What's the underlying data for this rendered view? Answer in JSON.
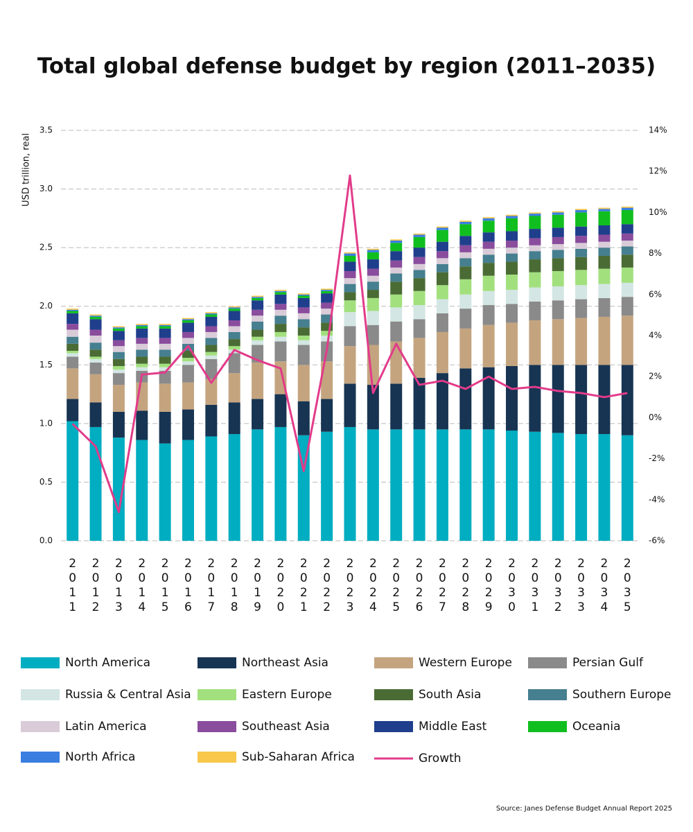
{
  "chart_data": {
    "type": "stacked-bar",
    "title": "Total global defense budget by region (2011–2035)",
    "y_label": "USD trillion, real",
    "source": "Source: Janes Defense Budget Annual Report 2025",
    "categories": [
      "2011",
      "2012",
      "2013",
      "2014",
      "2015",
      "2016",
      "2017",
      "2018",
      "2019",
      "2020",
      "2021",
      "2022",
      "2023",
      "2024",
      "2025",
      "2026",
      "2027",
      "2028",
      "2029",
      "2030",
      "2031",
      "2032",
      "2033",
      "2034",
      "2035"
    ],
    "ylim": [
      0,
      3.5
    ],
    "yticks": [
      {
        "value": 0,
        "label": "0.0"
      },
      0.5,
      {
        "value": 1,
        "label": "1.0"
      },
      1.5,
      {
        "value": 2,
        "label": "2.0"
      },
      2.5,
      {
        "value": 3,
        "label": "3.0"
      },
      3.5
    ],
    "y2lim": [
      -6,
      14
    ],
    "y2ticks": [
      {
        "value": -6,
        "label": "-6%"
      },
      {
        "value": -4,
        "label": "-4%"
      },
      {
        "value": -2,
        "label": "-2%"
      },
      {
        "value": 0,
        "label": "0%"
      },
      {
        "value": 2,
        "label": "2%"
      },
      {
        "value": 4,
        "label": "4%"
      },
      {
        "value": 6,
        "label": "6%"
      },
      {
        "value": 8,
        "label": "8%"
      },
      {
        "value": 10,
        "label": "10%"
      },
      {
        "value": 12,
        "label": "12%"
      },
      {
        "value": 14,
        "label": "14%"
      }
    ],
    "grid": true,
    "series": [
      {
        "name": "North America",
        "color": "#00adc1",
        "values": [
          1.02,
          0.97,
          0.88,
          0.86,
          0.83,
          0.86,
          0.89,
          0.91,
          0.95,
          0.97,
          0.9,
          0.93,
          0.97,
          0.95,
          0.95,
          0.95,
          0.95,
          0.95,
          0.95,
          0.94,
          0.93,
          0.92,
          0.91,
          0.91,
          0.9
        ]
      },
      {
        "name": "Northeast Asia",
        "color": "#173452",
        "values": [
          0.19,
          0.21,
          0.22,
          0.25,
          0.27,
          0.26,
          0.27,
          0.27,
          0.26,
          0.28,
          0.29,
          0.28,
          0.37,
          0.38,
          0.39,
          0.44,
          0.48,
          0.52,
          0.53,
          0.55,
          0.57,
          0.58,
          0.59,
          0.59,
          0.6
        ]
      },
      {
        "name": "Western Europe",
        "color": "#c4a47f",
        "values": [
          0.26,
          0.24,
          0.23,
          0.24,
          0.24,
          0.23,
          0.22,
          0.25,
          0.31,
          0.28,
          0.31,
          0.32,
          0.32,
          0.34,
          0.36,
          0.34,
          0.35,
          0.34,
          0.36,
          0.37,
          0.38,
          0.39,
          0.4,
          0.41,
          0.42
        ]
      },
      {
        "name": "Persian Gulf",
        "color": "#8a8a8a",
        "values": [
          0.1,
          0.1,
          0.1,
          0.1,
          0.11,
          0.15,
          0.17,
          0.17,
          0.15,
          0.17,
          0.17,
          0.17,
          0.17,
          0.17,
          0.17,
          0.16,
          0.16,
          0.17,
          0.17,
          0.16,
          0.16,
          0.16,
          0.16,
          0.16,
          0.16
        ]
      },
      {
        "name": "Russia & Central Asia",
        "color": "#d3e6e3",
        "values": [
          0.03,
          0.03,
          0.03,
          0.03,
          0.03,
          0.03,
          0.03,
          0.03,
          0.04,
          0.04,
          0.04,
          0.05,
          0.12,
          0.12,
          0.12,
          0.12,
          0.12,
          0.12,
          0.12,
          0.12,
          0.12,
          0.12,
          0.12,
          0.12,
          0.12
        ]
      },
      {
        "name": "Eastern Europe",
        "color": "#a2e07e",
        "values": [
          0.02,
          0.02,
          0.03,
          0.03,
          0.03,
          0.03,
          0.03,
          0.03,
          0.03,
          0.04,
          0.04,
          0.04,
          0.1,
          0.11,
          0.11,
          0.12,
          0.12,
          0.13,
          0.13,
          0.13,
          0.13,
          0.13,
          0.13,
          0.13,
          0.13
        ]
      },
      {
        "name": "South Asia",
        "color": "#4b6b35",
        "values": [
          0.06,
          0.06,
          0.06,
          0.06,
          0.06,
          0.06,
          0.06,
          0.06,
          0.06,
          0.07,
          0.07,
          0.07,
          0.07,
          0.07,
          0.11,
          0.11,
          0.11,
          0.11,
          0.11,
          0.11,
          0.11,
          0.11,
          0.11,
          0.11,
          0.11
        ]
      },
      {
        "name": "Southern Europe",
        "color": "#467f8f",
        "values": [
          0.06,
          0.06,
          0.06,
          0.06,
          0.06,
          0.06,
          0.06,
          0.06,
          0.07,
          0.07,
          0.07,
          0.07,
          0.07,
          0.07,
          0.07,
          0.07,
          0.07,
          0.07,
          0.07,
          0.07,
          0.07,
          0.07,
          0.07,
          0.07,
          0.07
        ]
      },
      {
        "name": "Latin America",
        "color": "#d9ccd8",
        "values": [
          0.06,
          0.06,
          0.05,
          0.05,
          0.05,
          0.05,
          0.05,
          0.05,
          0.05,
          0.05,
          0.05,
          0.05,
          0.05,
          0.05,
          0.05,
          0.05,
          0.05,
          0.05,
          0.05,
          0.05,
          0.05,
          0.05,
          0.05,
          0.05,
          0.05
        ]
      },
      {
        "name": "Southeast Asia",
        "color": "#8a4c9d",
        "values": [
          0.05,
          0.05,
          0.05,
          0.05,
          0.05,
          0.05,
          0.05,
          0.05,
          0.05,
          0.05,
          0.05,
          0.05,
          0.06,
          0.06,
          0.06,
          0.06,
          0.06,
          0.06,
          0.06,
          0.06,
          0.06,
          0.06,
          0.06,
          0.06,
          0.06
        ]
      },
      {
        "name": "Middle East",
        "color": "#1f3f8c",
        "values": [
          0.09,
          0.09,
          0.08,
          0.08,
          0.08,
          0.08,
          0.08,
          0.08,
          0.08,
          0.08,
          0.08,
          0.08,
          0.08,
          0.08,
          0.08,
          0.08,
          0.08,
          0.08,
          0.08,
          0.08,
          0.08,
          0.08,
          0.08,
          0.08,
          0.08
        ]
      },
      {
        "name": "Oceania",
        "color": "#10bf1f",
        "values": [
          0.02,
          0.02,
          0.02,
          0.02,
          0.02,
          0.02,
          0.02,
          0.02,
          0.02,
          0.02,
          0.02,
          0.02,
          0.05,
          0.06,
          0.07,
          0.09,
          0.1,
          0.1,
          0.1,
          0.11,
          0.11,
          0.11,
          0.12,
          0.12,
          0.12
        ]
      },
      {
        "name": "North Africa",
        "color": "#3a7ee0",
        "values": [
          0.01,
          0.01,
          0.01,
          0.01,
          0.01,
          0.01,
          0.01,
          0.01,
          0.01,
          0.01,
          0.01,
          0.01,
          0.02,
          0.02,
          0.02,
          0.02,
          0.02,
          0.02,
          0.02,
          0.02,
          0.02,
          0.02,
          0.02,
          0.02,
          0.02
        ]
      },
      {
        "name": "Sub-Saharan Africa",
        "color": "#f7c84c",
        "values": [
          0.01,
          0.01,
          0.01,
          0.01,
          0.01,
          0.01,
          0.01,
          0.01,
          0.01,
          0.01,
          0.01,
          0.01,
          0.01,
          0.01,
          0.01,
          0.01,
          0.01,
          0.01,
          0.01,
          0.01,
          0.01,
          0.01,
          0.01,
          0.01,
          0.01
        ]
      },
      {
        "name": "Growth",
        "color": "#e23b8a",
        "axis": "y2",
        "type": "line",
        "values": [
          -0.3,
          -1.4,
          -4.6,
          2.1,
          2.2,
          3.5,
          1.7,
          3.3,
          2.8,
          2.4,
          -2.6,
          3.3,
          11.8,
          1.2,
          3.6,
          1.6,
          1.8,
          1.4,
          2.0,
          1.4,
          1.5,
          1.3,
          1.2,
          1.0,
          1.2
        ]
      }
    ]
  }
}
